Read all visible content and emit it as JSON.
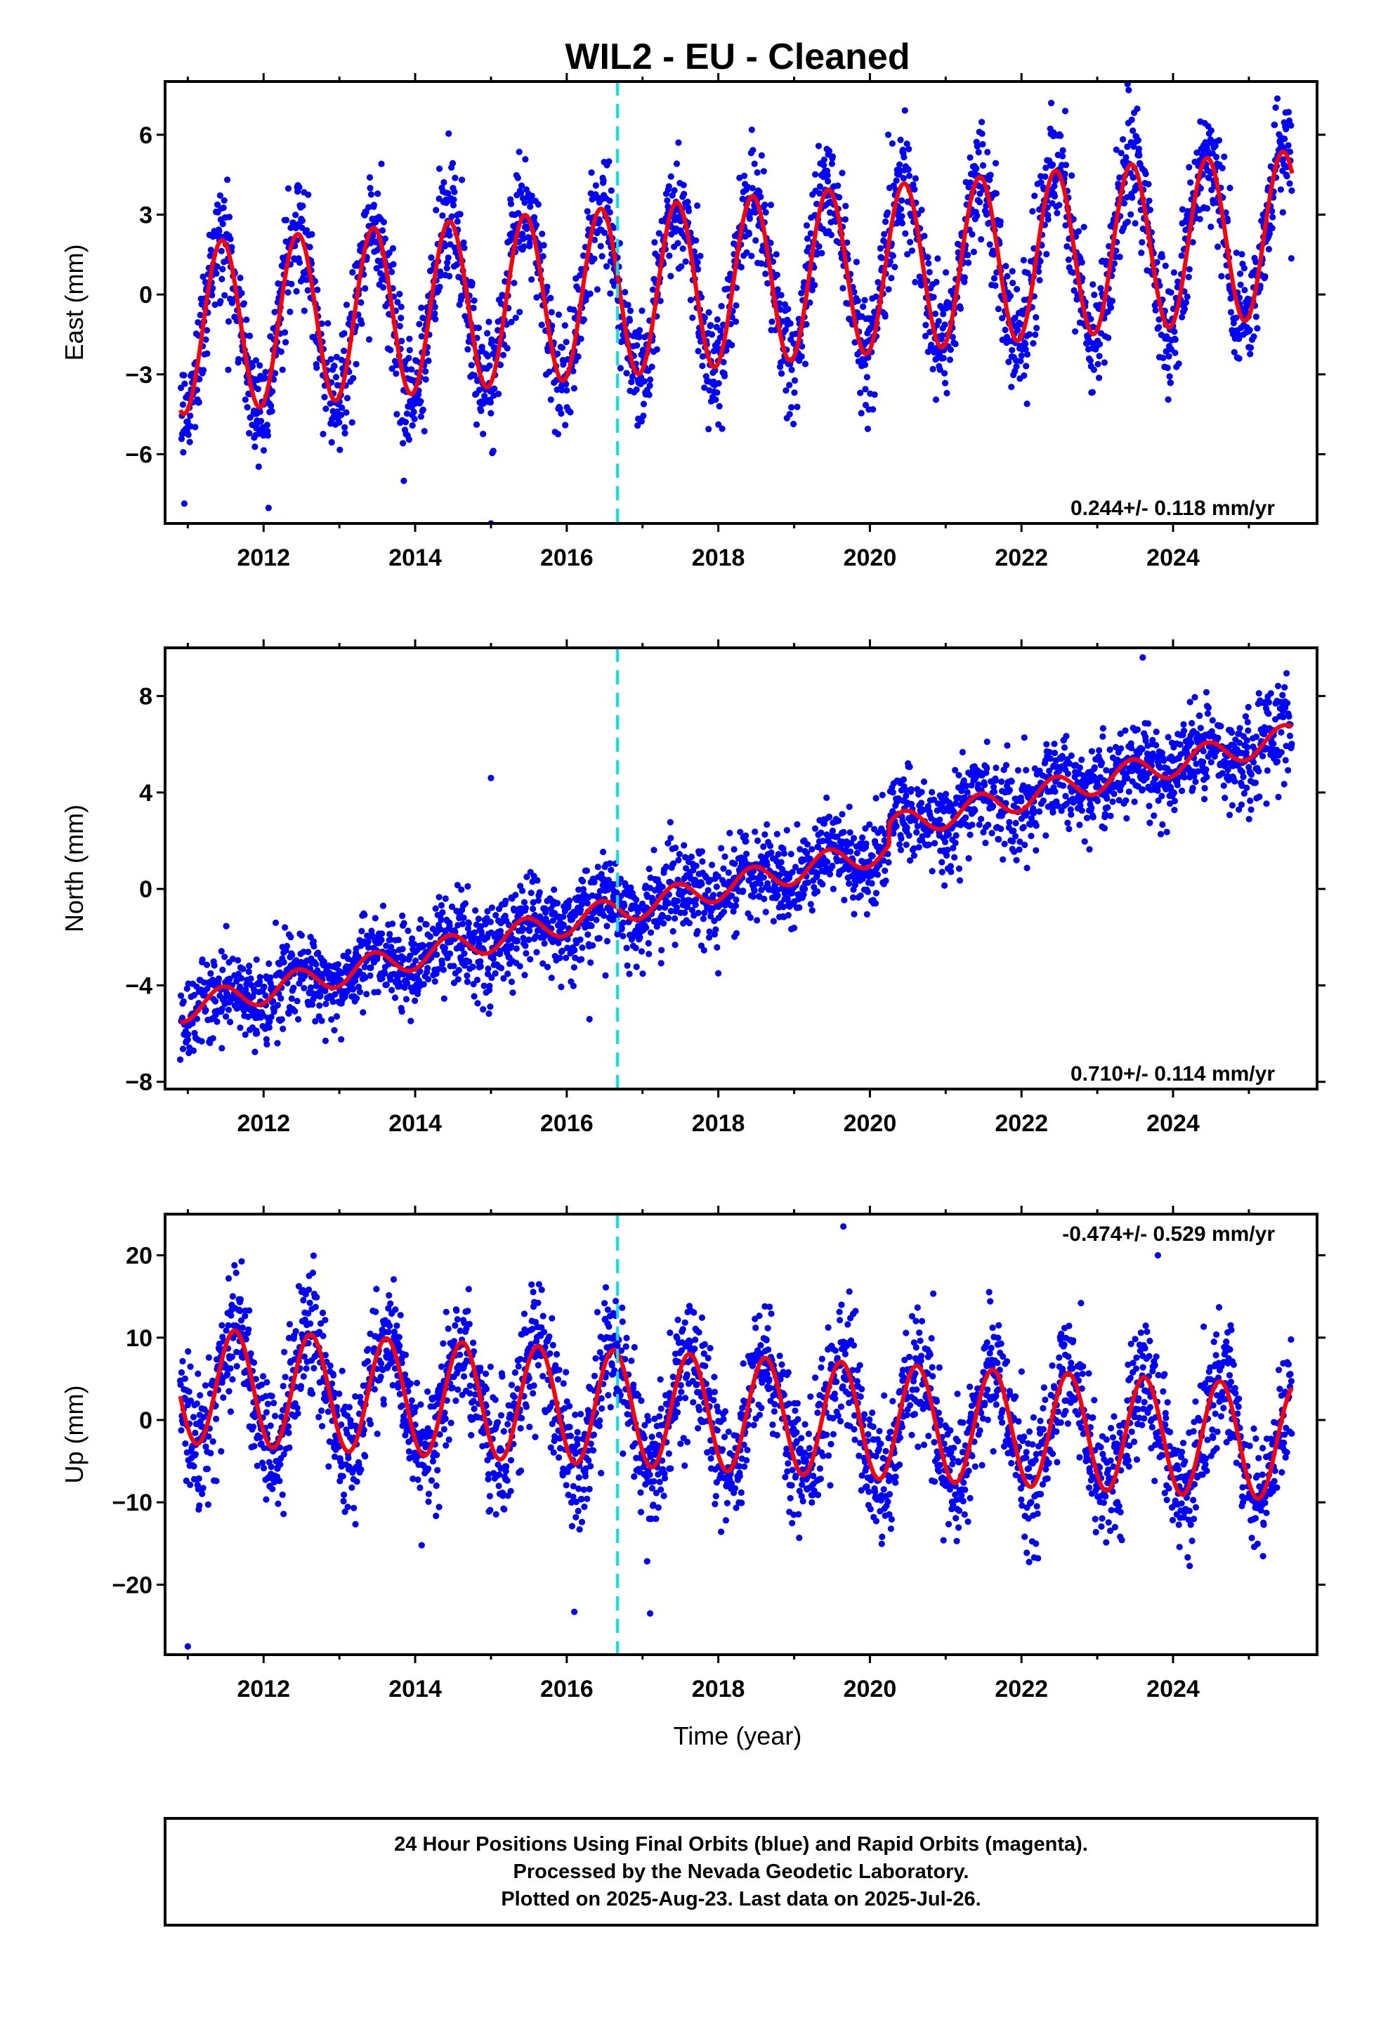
{
  "chart_data": {
    "type": "scatter",
    "title": "WIL2  - EU - Cleaned",
    "xlabel": "Time (year)",
    "xlim": [
      2010.7,
      2025.9
    ],
    "xticks": [
      2012,
      2014,
      2016,
      2018,
      2020,
      2022,
      2024
    ],
    "event_line_x": 2016.67,
    "panels": [
      {
        "id": "east",
        "ylabel": "East (mm)",
        "ylim": [
          -8.6,
          8.0
        ],
        "yticks": [
          -6,
          -3,
          0,
          3,
          6
        ],
        "rate_label": "0.244+/- 0.118 mm/yr",
        "rate_position": "bottom-right",
        "model": {
          "start_x": 2010.9,
          "end_x": 2025.57,
          "offset": -1.3,
          "trend": 0.244,
          "amplitude": 3.2,
          "amp_trend": -0.006,
          "peak_x": 2011.45,
          "noise_sd": 1.1
        },
        "outliers": [
          {
            "x": 2015.0,
            "y": -8.6
          },
          {
            "x": 2013.85,
            "y": -7.0
          },
          {
            "x": 2023.4,
            "y": 7.9
          }
        ]
      },
      {
        "id": "north",
        "ylabel": "North (mm)",
        "ylim": [
          -8.3,
          10.0
        ],
        "yticks": [
          -8,
          -4,
          0,
          4,
          8
        ],
        "rate_label": "0.710+/- 0.114 mm/yr",
        "rate_position": "bottom-right",
        "model": {
          "start_x": 2010.9,
          "end_x": 2025.57,
          "offset": -5.0,
          "trend": 0.71,
          "amplitude": 0.55,
          "amp_trend": 0.0,
          "peak_x": 2011.45,
          "noise_sd": 0.9
        },
        "steps": [
          {
            "x": 2020.25,
            "y": 0.9
          }
        ],
        "outliers": [
          {
            "x": 2015.0,
            "y": 4.6
          },
          {
            "x": 2023.6,
            "y": 9.6
          },
          {
            "x": 2016.3,
            "y": -5.4
          },
          {
            "x": 2018.0,
            "y": -3.5
          }
        ]
      },
      {
        "id": "up",
        "ylabel": "Up (mm)",
        "ylim": [
          -28.5,
          25.0
        ],
        "yticks": [
          -20,
          -10,
          0,
          10,
          20
        ],
        "rate_label": "-0.474+/- 0.529 mm/yr",
        "rate_position": "top-right",
        "model": {
          "start_x": 2010.9,
          "end_x": 2025.57,
          "offset": 4.2,
          "trend": -0.474,
          "amplitude": 7.0,
          "amp_trend": 0.0,
          "peak_x": 2011.62,
          "noise_sd": 3.8
        },
        "outliers": [
          {
            "x": 2011.0,
            "y": -27.5
          },
          {
            "x": 2016.1,
            "y": -23.3
          },
          {
            "x": 2019.65,
            "y": 23.5
          },
          {
            "x": 2023.8,
            "y": 20.0
          },
          {
            "x": 2017.1,
            "y": -23.5
          }
        ]
      }
    ],
    "series": [
      {
        "name": "Final Orbits",
        "color": "#0000ff",
        "kind": "points"
      },
      {
        "name": "Rapid Orbits",
        "color": "#ff00ff",
        "kind": "points"
      },
      {
        "name": "Model",
        "color": "#ff0000",
        "kind": "line"
      }
    ],
    "colors": {
      "points": "#0000ff",
      "model_line": "#ff0000",
      "event_line": "#00e5e5",
      "frame": "#000000"
    }
  },
  "footer": {
    "line1": "24 Hour Positions Using Final Orbits (blue) and Rapid Orbits (magenta).",
    "line2": "Processed by the Nevada Geodetic Laboratory.",
    "line3": "Plotted on 2025-Aug-23. Last data on 2025-Jul-26."
  }
}
